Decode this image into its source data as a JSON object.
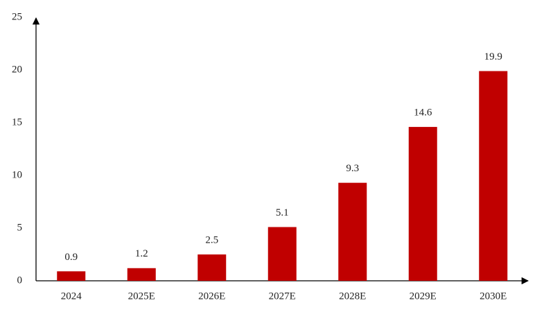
{
  "chart_data": {
    "type": "bar",
    "categories": [
      "2024",
      "2025E",
      "2026E",
      "2027E",
      "2028E",
      "2029E",
      "2030E"
    ],
    "values": [
      0.9,
      1.2,
      2.5,
      5.1,
      9.3,
      14.6,
      19.9
    ],
    "color": "#c00000",
    "ylim": [
      0,
      25
    ],
    "yticks": [
      0,
      5,
      10,
      15,
      20,
      25
    ],
    "grid": false
  }
}
